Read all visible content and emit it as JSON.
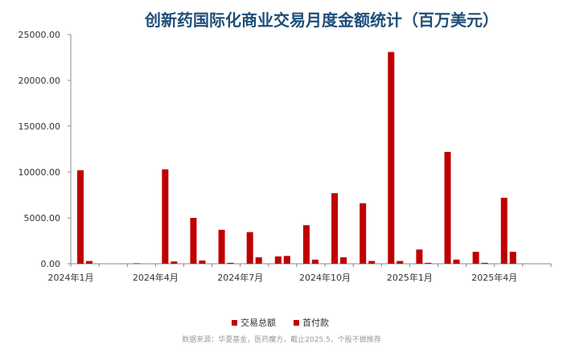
{
  "chart_data": {
    "type": "bar",
    "title": "创新药国际化商业交易月度金额统计（百万美元）",
    "xlabel": "",
    "ylabel": "",
    "ylim": [
      0,
      25000
    ],
    "y_ticks": [
      "0.00",
      "5000.00",
      "10000.00",
      "15000.00",
      "20000.00",
      "25000.00"
    ],
    "y_tick_values": [
      0,
      5000,
      10000,
      15000,
      20000,
      25000
    ],
    "x_tick_labels": [
      "2024年1月",
      "2024年4月",
      "2024年7月",
      "2024年10月",
      "2025年1月",
      "2025年4月"
    ],
    "x_tick_index": [
      0,
      3,
      6,
      9,
      12,
      15
    ],
    "categories": [
      "2024-01",
      "2024-02",
      "2024-03",
      "2024-04",
      "2024-05",
      "2024-06",
      "2024-07",
      "2024-08",
      "2024-09",
      "2024-10",
      "2024-11",
      "2024-12",
      "2025-01",
      "2025-02",
      "2025-03",
      "2025-04",
      "2025-05"
    ],
    "series": [
      {
        "name": "交易总额",
        "color": "#c00000",
        "values": [
          10200,
          0,
          50,
          10300,
          5000,
          3700,
          3450,
          800,
          4200,
          7700,
          6600,
          23100,
          1550,
          12200,
          1300,
          7200,
          0
        ]
      },
      {
        "name": "首付款",
        "color": "#c00000",
        "values": [
          300,
          0,
          0,
          250,
          350,
          100,
          700,
          850,
          450,
          700,
          300,
          300,
          100,
          450,
          100,
          1300,
          0
        ]
      }
    ],
    "grid": false,
    "legend": "bottom-center",
    "source": "数据来源：华夏基金，医药魔方，截止2025.5，个股不做推荐"
  }
}
